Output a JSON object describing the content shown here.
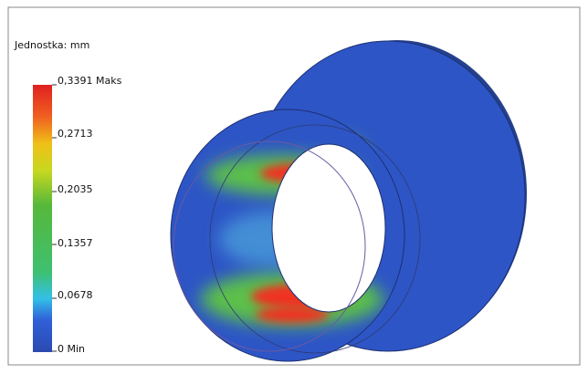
{
  "legend": {
    "title": "Jednostka: mm",
    "labels": [
      "0,3391 Maks",
      "0,2713",
      "0,2035",
      "0,1357",
      "0,0678",
      "0 Min"
    ]
  }
}
